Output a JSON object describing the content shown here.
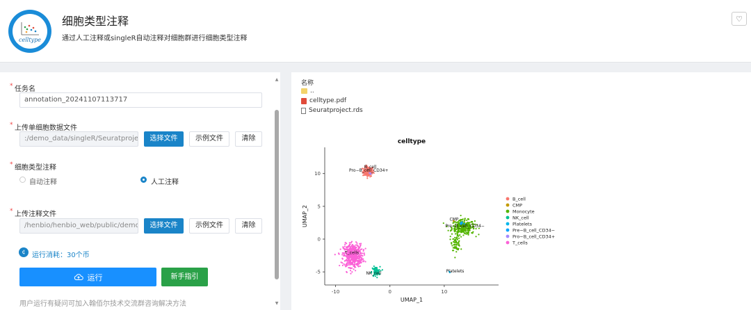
{
  "header": {
    "logo_text": "celltype",
    "title": "细胞类型注释",
    "subtitle": "通过人工注释或singleR自动注释对细胞群进行细胞类型注释",
    "fav_icon": "♡"
  },
  "form": {
    "task_name_label": "任务名",
    "task_name_value": "annotation_20241107113717",
    "upload_label": "上传单细胞数据文件",
    "upload_value": ":/demo_data/singleR/Seuratproject.rds",
    "select_file": "选择文件",
    "example_file": "示例文件",
    "clear": "清除",
    "annotation_label": "细胞类型注释",
    "auto_label": "自动注释",
    "manual_label": "人工注释",
    "selected_mode": "manual",
    "annot_file_label": "上传注释文件",
    "annot_file_value": "/henbio/henbio_web/public/demo_data",
    "cost_text": "运行消耗：30个币",
    "run_button": "运行",
    "guide_button": "新手指引",
    "help_text": "用户运行有疑问可加入翰佰尔技术交流群咨询解决方法"
  },
  "files": {
    "header": "名称",
    "items": [
      {
        "name": "..",
        "type": "folder"
      },
      {
        "name": "celltype.pdf",
        "type": "pdf"
      },
      {
        "name": "Seuratproject.rds",
        "type": "file"
      }
    ]
  },
  "chart_data": {
    "type": "scatter",
    "title": "celltype",
    "xlabel": "UMAP_1",
    "ylabel": "UMAP_2",
    "xlim": [
      -12,
      20
    ],
    "ylim": [
      -7,
      14
    ],
    "xticks": [
      -10,
      0,
      10
    ],
    "yticks": [
      -5,
      0,
      5,
      10
    ],
    "legend": "right",
    "series": [
      {
        "name": "B_cell",
        "color": "#f8766d",
        "clusters": [
          {
            "cx": -4.0,
            "cy": 10.3,
            "sx": 0.9,
            "sy": 0.7,
            "n": 140
          }
        ]
      },
      {
        "name": "CMP",
        "color": "#c49a00",
        "clusters": [
          {
            "cx": 11.8,
            "cy": 2.8,
            "sx": 0.2,
            "sy": 0.1,
            "n": 3
          }
        ]
      },
      {
        "name": "Monocyte",
        "color": "#53b400",
        "clusters": [
          {
            "cx": 13.5,
            "cy": 1.8,
            "sx": 1.9,
            "sy": 1.0,
            "n": 320
          },
          {
            "cx": 12.2,
            "cy": -0.6,
            "sx": 0.7,
            "sy": 1.0,
            "n": 70
          }
        ]
      },
      {
        "name": "NK_cell",
        "color": "#00c094",
        "clusters": [
          {
            "cx": -2.6,
            "cy": -5.0,
            "sx": 0.7,
            "sy": 0.7,
            "n": 70
          }
        ]
      },
      {
        "name": "Platelets",
        "color": "#00b6eb",
        "clusters": [
          {
            "cx": 11.0,
            "cy": -5.0,
            "sx": 0.1,
            "sy": 0.1,
            "n": 2
          }
        ]
      },
      {
        "name": "Pre−B_cell_CD34−",
        "color": "#06a4ff",
        "clusters": [
          {
            "cx": 13.2,
            "cy": 2.4,
            "sx": 0.5,
            "sy": 0.3,
            "n": 12
          }
        ]
      },
      {
        "name": "Pro−B_cell_CD34+",
        "color": "#a58aff",
        "clusters": [
          {
            "cx": -3.6,
            "cy": 10.0,
            "sx": 0.3,
            "sy": 0.2,
            "n": 6
          }
        ]
      },
      {
        "name": "T_cells",
        "color": "#fb61d7",
        "clusters": [
          {
            "cx": -6.8,
            "cy": -2.5,
            "sx": 1.6,
            "sy": 1.6,
            "n": 520
          }
        ]
      }
    ],
    "annotations": [
      {
        "text": "B_cell",
        "x": -3.6,
        "y": 10.8
      },
      {
        "text": "Pro−B_cell_CD34+",
        "x": -3.9,
        "y": 10.3
      },
      {
        "text": "CMP",
        "x": 11.8,
        "y": 2.8
      },
      {
        "text": "Pre−B_cell_CD34−",
        "x": 13.8,
        "y": 1.8
      },
      {
        "text": "T_cells",
        "x": -7.0,
        "y": -2.3
      },
      {
        "text": "NK_cell",
        "x": -3.0,
        "y": -5.4
      },
      {
        "text": "Platelets",
        "x": 12.0,
        "y": -5.1
      }
    ]
  }
}
